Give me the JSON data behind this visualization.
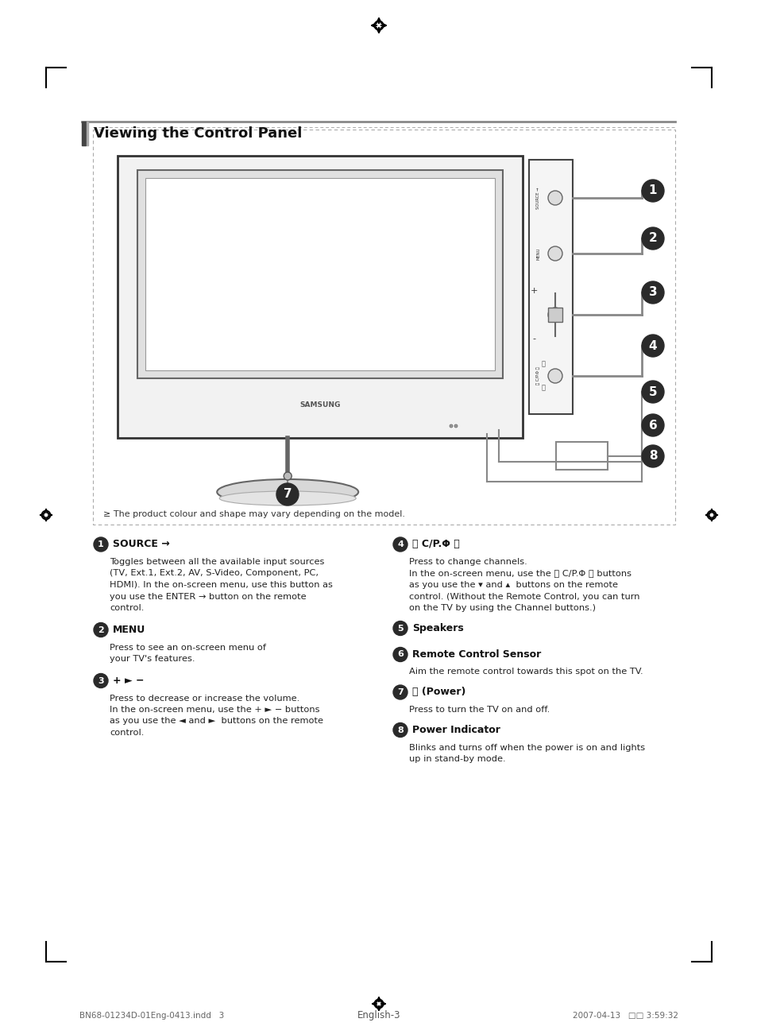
{
  "title": "Viewing the Control Panel",
  "background_color": "#ffffff",
  "items": [
    {
      "num": "1",
      "heading": "SOURCE →",
      "body": "Toggles between all the available input sources\n(TV, Ext.1, Ext.2, AV, S-Video, Component, PC,\nHDMI). In the on-screen menu, use this button as\nyou use the ENTER → button on the remote\ncontrol."
    },
    {
      "num": "2",
      "heading": "MENU",
      "body": "Press to see an on-screen menu of\nyour TV's features."
    },
    {
      "num": "3",
      "heading": "+ ► −",
      "body": "Press to decrease or increase the volume.\nIn the on-screen menu, use the + ► − buttons\nas you use the ◄ and ►  buttons on the remote\ncontrol."
    },
    {
      "num": "4",
      "heading": "〈 C/P.Φ 〉",
      "body": "Press to change channels.\nIn the on-screen menu, use the 〈 C/P.Φ 〉 buttons\nas you use the ▾ and ▴  buttons on the remote\ncontrol. (Without the Remote Control, you can turn\non the TV by using the Channel buttons.)"
    },
    {
      "num": "5",
      "heading": "Speakers",
      "body": ""
    },
    {
      "num": "6",
      "heading": "Remote Control Sensor",
      "body": "Aim the remote control towards this spot on the TV."
    },
    {
      "num": "7",
      "heading": "⏻ (Power)",
      "body": "Press to turn the TV on and off."
    },
    {
      "num": "8",
      "heading": "Power Indicator",
      "body": "Blinks and turns off when the power is on and lights\nup in stand-by mode."
    }
  ],
  "note": "≥ The product colour and shape may vary depending on the model.",
  "footer_left": "BN68-01234D-01Eng-0413.indd   3",
  "footer_center": "English-3",
  "footer_right": "2007-04-13   □□ 3:59:32",
  "tv_color": "#f2f2f2",
  "tv_border": "#333333",
  "screen_color": "#e0e0e0",
  "screen_inner": "#ffffff",
  "panel_color": "#f5f5f5",
  "btn_color": "#dddddd",
  "line_color": "#888888",
  "circle_color": "#2a2a2a"
}
